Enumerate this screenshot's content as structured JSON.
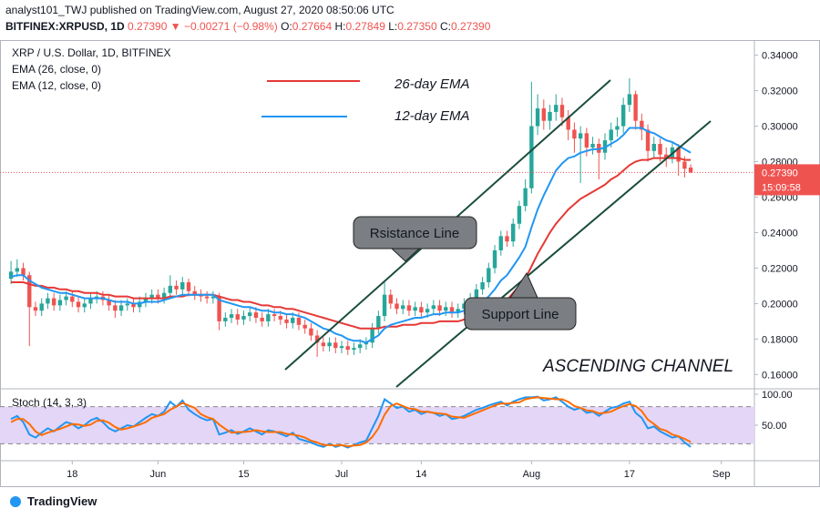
{
  "header": {
    "line1": "analyst101_TWJ published on TradingView.com, August 27, 2020 08:50:06 UTC",
    "symbol": "BITFINEX:XRPUSD, 1D",
    "price": "0.27390",
    "arrow": "▼",
    "change": "−0.00271 (−0.98%)",
    "ohlc": [
      {
        "key": "O:",
        "value": "0.27664"
      },
      {
        "key": "H:",
        "value": "0.27849"
      },
      {
        "key": "L:",
        "value": "0.27350"
      },
      {
        "key": "C:",
        "value": "0.27390"
      }
    ]
  },
  "chart_data": [
    {
      "type": "candlestick",
      "title": "XRP / U.S. Dollar, 1D, BITFINEX",
      "up_color": "#26a69a",
      "down_color": "#ef5350",
      "open": [
        0.214,
        0.218,
        0.22,
        0.216,
        0.198,
        0.196,
        0.2,
        0.203,
        0.199,
        0.202,
        0.204,
        0.201,
        0.198,
        0.2,
        0.203,
        0.204,
        0.202,
        0.199,
        0.196,
        0.199,
        0.2,
        0.198,
        0.201,
        0.203,
        0.205,
        0.203,
        0.206,
        0.21,
        0.208,
        0.212,
        0.207,
        0.205,
        0.204,
        0.203,
        0.204,
        0.19,
        0.192,
        0.194,
        0.191,
        0.193,
        0.195,
        0.192,
        0.19,
        0.194,
        0.193,
        0.191,
        0.189,
        0.192,
        0.188,
        0.186,
        0.182,
        0.178,
        0.176,
        0.178,
        0.175,
        0.176,
        0.174,
        0.175,
        0.177,
        0.178,
        0.186,
        0.193,
        0.205,
        0.2,
        0.197,
        0.199,
        0.196,
        0.198,
        0.195,
        0.197,
        0.199,
        0.196,
        0.198,
        0.195,
        0.197,
        0.2,
        0.203,
        0.208,
        0.212,
        0.22,
        0.23,
        0.238,
        0.235,
        0.245,
        0.255,
        0.265,
        0.3,
        0.31,
        0.303,
        0.308,
        0.312,
        0.305,
        0.298,
        0.293,
        0.296,
        0.288,
        0.29,
        0.285,
        0.292,
        0.298,
        0.3,
        0.312,
        0.318,
        0.303,
        0.298,
        0.286,
        0.29,
        0.284,
        0.282,
        0.288,
        0.28,
        0.27664
      ],
      "high": [
        0.224,
        0.225,
        0.223,
        0.218,
        0.201,
        0.203,
        0.206,
        0.206,
        0.205,
        0.207,
        0.207,
        0.204,
        0.203,
        0.206,
        0.207,
        0.207,
        0.205,
        0.202,
        0.202,
        0.203,
        0.203,
        0.204,
        0.206,
        0.208,
        0.208,
        0.209,
        0.216,
        0.213,
        0.215,
        0.214,
        0.21,
        0.208,
        0.207,
        0.207,
        0.206,
        0.195,
        0.197,
        0.197,
        0.196,
        0.198,
        0.198,
        0.195,
        0.197,
        0.197,
        0.196,
        0.194,
        0.195,
        0.195,
        0.191,
        0.189,
        0.185,
        0.181,
        0.181,
        0.181,
        0.179,
        0.179,
        0.178,
        0.18,
        0.181,
        0.189,
        0.196,
        0.212,
        0.208,
        0.203,
        0.202,
        0.202,
        0.201,
        0.201,
        0.2,
        0.202,
        0.202,
        0.201,
        0.201,
        0.2,
        0.203,
        0.206,
        0.211,
        0.215,
        0.223,
        0.233,
        0.241,
        0.241,
        0.248,
        0.258,
        0.27,
        0.325,
        0.318,
        0.315,
        0.312,
        0.318,
        0.316,
        0.309,
        0.302,
        0.3,
        0.299,
        0.294,
        0.293,
        0.296,
        0.302,
        0.305,
        0.316,
        0.327,
        0.32,
        0.307,
        0.301,
        0.294,
        0.293,
        0.288,
        0.291,
        0.29,
        0.283,
        0.27849
      ],
      "low": [
        0.211,
        0.215,
        0.213,
        0.176,
        0.193,
        0.193,
        0.197,
        0.196,
        0.196,
        0.199,
        0.198,
        0.195,
        0.195,
        0.197,
        0.2,
        0.199,
        0.196,
        0.192,
        0.193,
        0.196,
        0.195,
        0.195,
        0.198,
        0.2,
        0.2,
        0.2,
        0.203,
        0.205,
        0.205,
        0.204,
        0.202,
        0.201,
        0.2,
        0.2,
        0.185,
        0.187,
        0.189,
        0.188,
        0.188,
        0.19,
        0.189,
        0.187,
        0.187,
        0.19,
        0.188,
        0.186,
        0.186,
        0.185,
        0.183,
        0.179,
        0.17,
        0.173,
        0.173,
        0.172,
        0.172,
        0.171,
        0.171,
        0.172,
        0.174,
        0.175,
        0.183,
        0.19,
        0.197,
        0.194,
        0.194,
        0.193,
        0.193,
        0.192,
        0.192,
        0.194,
        0.193,
        0.193,
        0.192,
        0.192,
        0.194,
        0.197,
        0.2,
        0.205,
        0.209,
        0.217,
        0.227,
        0.232,
        0.232,
        0.242,
        0.252,
        0.262,
        0.295,
        0.298,
        0.298,
        0.303,
        0.3,
        0.292,
        0.285,
        0.268,
        0.283,
        0.284,
        0.27,
        0.281,
        0.288,
        0.294,
        0.296,
        0.308,
        0.298,
        0.292,
        0.28,
        0.282,
        0.28,
        0.277,
        0.279,
        0.272,
        0.271,
        0.2735
      ],
      "close": [
        0.218,
        0.22,
        0.216,
        0.198,
        0.196,
        0.2,
        0.203,
        0.199,
        0.202,
        0.204,
        0.201,
        0.198,
        0.2,
        0.203,
        0.204,
        0.202,
        0.199,
        0.196,
        0.199,
        0.2,
        0.198,
        0.201,
        0.203,
        0.205,
        0.203,
        0.206,
        0.21,
        0.208,
        0.212,
        0.207,
        0.205,
        0.204,
        0.203,
        0.204,
        0.19,
        0.192,
        0.194,
        0.191,
        0.193,
        0.195,
        0.192,
        0.19,
        0.194,
        0.193,
        0.191,
        0.189,
        0.192,
        0.188,
        0.186,
        0.182,
        0.178,
        0.176,
        0.178,
        0.175,
        0.176,
        0.174,
        0.175,
        0.177,
        0.178,
        0.186,
        0.193,
        0.205,
        0.2,
        0.197,
        0.199,
        0.196,
        0.198,
        0.195,
        0.197,
        0.199,
        0.196,
        0.198,
        0.195,
        0.197,
        0.2,
        0.203,
        0.208,
        0.212,
        0.22,
        0.23,
        0.238,
        0.235,
        0.245,
        0.255,
        0.265,
        0.3,
        0.31,
        0.303,
        0.308,
        0.312,
        0.305,
        0.298,
        0.293,
        0.296,
        0.288,
        0.29,
        0.285,
        0.292,
        0.298,
        0.3,
        0.312,
        0.318,
        0.303,
        0.298,
        0.286,
        0.29,
        0.284,
        0.282,
        0.288,
        0.28,
        0.276,
        0.2739
      ],
      "series": [
        {
          "name": "EMA (26, close, 0)",
          "color": "#e53935",
          "values": [
            0.212,
            0.212,
            0.212,
            0.211,
            0.21,
            0.21,
            0.209,
            0.209,
            0.208,
            0.208,
            0.207,
            0.207,
            0.206,
            0.206,
            0.206,
            0.205,
            0.205,
            0.204,
            0.204,
            0.204,
            0.203,
            0.203,
            0.203,
            0.203,
            0.203,
            0.203,
            0.204,
            0.204,
            0.204,
            0.205,
            0.205,
            0.205,
            0.205,
            0.205,
            0.204,
            0.203,
            0.202,
            0.202,
            0.201,
            0.201,
            0.2,
            0.199,
            0.199,
            0.198,
            0.198,
            0.197,
            0.197,
            0.196,
            0.195,
            0.194,
            0.193,
            0.192,
            0.191,
            0.19,
            0.189,
            0.188,
            0.187,
            0.186,
            0.186,
            0.186,
            0.186,
            0.187,
            0.187,
            0.187,
            0.188,
            0.188,
            0.188,
            0.189,
            0.189,
            0.189,
            0.19,
            0.19,
            0.19,
            0.19,
            0.191,
            0.191,
            0.192,
            0.194,
            0.195,
            0.198,
            0.2,
            0.202,
            0.206,
            0.21,
            0.214,
            0.221,
            0.228,
            0.234,
            0.24,
            0.245,
            0.249,
            0.253,
            0.256,
            0.259,
            0.261,
            0.263,
            0.265,
            0.267,
            0.27,
            0.272,
            0.275,
            0.278,
            0.28,
            0.281,
            0.281,
            0.282,
            0.282,
            0.282,
            0.282,
            0.282,
            0.281,
            0.281
          ]
        },
        {
          "name": "EMA (12, close, 0)",
          "color": "#2196f3",
          "values": [
            0.215,
            0.216,
            0.216,
            0.213,
            0.211,
            0.209,
            0.208,
            0.207,
            0.206,
            0.206,
            0.205,
            0.204,
            0.203,
            0.203,
            0.203,
            0.203,
            0.202,
            0.201,
            0.201,
            0.201,
            0.2,
            0.2,
            0.201,
            0.201,
            0.201,
            0.202,
            0.203,
            0.204,
            0.205,
            0.205,
            0.205,
            0.205,
            0.205,
            0.205,
            0.202,
            0.201,
            0.2,
            0.199,
            0.198,
            0.198,
            0.197,
            0.196,
            0.196,
            0.195,
            0.195,
            0.194,
            0.194,
            0.193,
            0.192,
            0.19,
            0.188,
            0.186,
            0.185,
            0.183,
            0.182,
            0.18,
            0.179,
            0.179,
            0.178,
            0.18,
            0.182,
            0.186,
            0.188,
            0.189,
            0.19,
            0.191,
            0.192,
            0.192,
            0.193,
            0.194,
            0.194,
            0.195,
            0.195,
            0.195,
            0.196,
            0.197,
            0.199,
            0.201,
            0.204,
            0.208,
            0.213,
            0.216,
            0.221,
            0.226,
            0.232,
            0.243,
            0.253,
            0.261,
            0.268,
            0.275,
            0.279,
            0.282,
            0.283,
            0.285,
            0.286,
            0.287,
            0.287,
            0.288,
            0.29,
            0.292,
            0.295,
            0.299,
            0.299,
            0.299,
            0.297,
            0.296,
            0.294,
            0.292,
            0.291,
            0.289,
            0.287,
            0.285
          ]
        }
      ],
      "xlim": [
        -1.8,
        121.4
      ],
      "xticks": [
        {
          "value": 10,
          "label": "18"
        },
        {
          "value": 24,
          "label": "Jun"
        },
        {
          "value": 38,
          "label": "15"
        },
        {
          "value": 54,
          "label": "Jul"
        },
        {
          "value": 67,
          "label": "14"
        },
        {
          "value": 85,
          "label": "Aug"
        },
        {
          "value": 101,
          "label": "17"
        },
        {
          "value": 116,
          "label": "Sep"
        }
      ],
      "ylim": [
        0.153,
        0.348
      ],
      "yticks": [
        {
          "value": 0.16,
          "label": "0.16000"
        },
        {
          "value": 0.18,
          "label": "0.18000"
        },
        {
          "value": 0.2,
          "label": "0.20000"
        },
        {
          "value": 0.22,
          "label": "0.22000"
        },
        {
          "value": 0.24,
          "label": "0.24000"
        },
        {
          "value": 0.26,
          "label": "0.26000"
        },
        {
          "value": 0.28,
          "label": "0.28000"
        },
        {
          "value": 0.3,
          "label": "0.30000"
        },
        {
          "value": 0.32,
          "label": "0.32000"
        },
        {
          "value": 0.34,
          "label": "0.34000"
        }
      ],
      "last_price": {
        "value": 0.2739,
        "label": "0.27390"
      },
      "countdown": "15:09:58",
      "annotations": [
        "26-day EMA",
        "12-day EMA",
        "Rsistance Line",
        "Support Line",
        "ASCENDING CHANNEL"
      ]
    },
    {
      "type": "line",
      "title": "Stoch (14, 3, 3)",
      "ylim": [
        -5.9,
        107.4
      ],
      "yticks": [
        {
          "value": 100,
          "label": "100.00"
        },
        {
          "value": 50,
          "label": "50.00"
        }
      ],
      "band": [
        20,
        80
      ],
      "series": [
        {
          "color": "#2196f3",
          "values": [
            60,
            65,
            55,
            35,
            30,
            38,
            45,
            40,
            48,
            55,
            52,
            45,
            50,
            58,
            62,
            55,
            45,
            40,
            45,
            50,
            48,
            55,
            62,
            68,
            65,
            72,
            88,
            80,
            90,
            75,
            68,
            62,
            58,
            60,
            35,
            38,
            42,
            36,
            40,
            45,
            40,
            35,
            42,
            40,
            36,
            32,
            38,
            28,
            25,
            22,
            18,
            15,
            20,
            15,
            18,
            14,
            18,
            22,
            25,
            45,
            65,
            92,
            85,
            78,
            80,
            72,
            75,
            68,
            72,
            70,
            65,
            68,
            60,
            62,
            65,
            70,
            75,
            78,
            82,
            85,
            88,
            82,
            88,
            92,
            95,
            95,
            96,
            90,
            92,
            95,
            88,
            80,
            75,
            78,
            70,
            72,
            65,
            72,
            78,
            80,
            85,
            88,
            70,
            62,
            45,
            48,
            40,
            35,
            30,
            32,
            22,
            15
          ]
        },
        {
          "color": "#ff6d00",
          "values": [
            55,
            60,
            60,
            52,
            40,
            34,
            38,
            41,
            44,
            48,
            52,
            51,
            49,
            51,
            57,
            58,
            54,
            47,
            43,
            45,
            48,
            51,
            55,
            62,
            65,
            68,
            75,
            80,
            86,
            82,
            78,
            68,
            63,
            60,
            51,
            44,
            38,
            39,
            39,
            40,
            42,
            40,
            39,
            39,
            39,
            36,
            35,
            33,
            30,
            25,
            22,
            18,
            18,
            17,
            18,
            16,
            17,
            18,
            22,
            31,
            45,
            67,
            81,
            85,
            81,
            77,
            76,
            72,
            72,
            70,
            69,
            68,
            64,
            63,
            62,
            66,
            70,
            74,
            78,
            82,
            85,
            85,
            86,
            87,
            92,
            94,
            95,
            94,
            93,
            92,
            92,
            88,
            81,
            78,
            74,
            73,
            69,
            70,
            72,
            77,
            81,
            84,
            81,
            73,
            59,
            52,
            44,
            41,
            35,
            32,
            28,
            23
          ]
        }
      ]
    }
  ],
  "footer": {
    "brand": "TradingView"
  }
}
